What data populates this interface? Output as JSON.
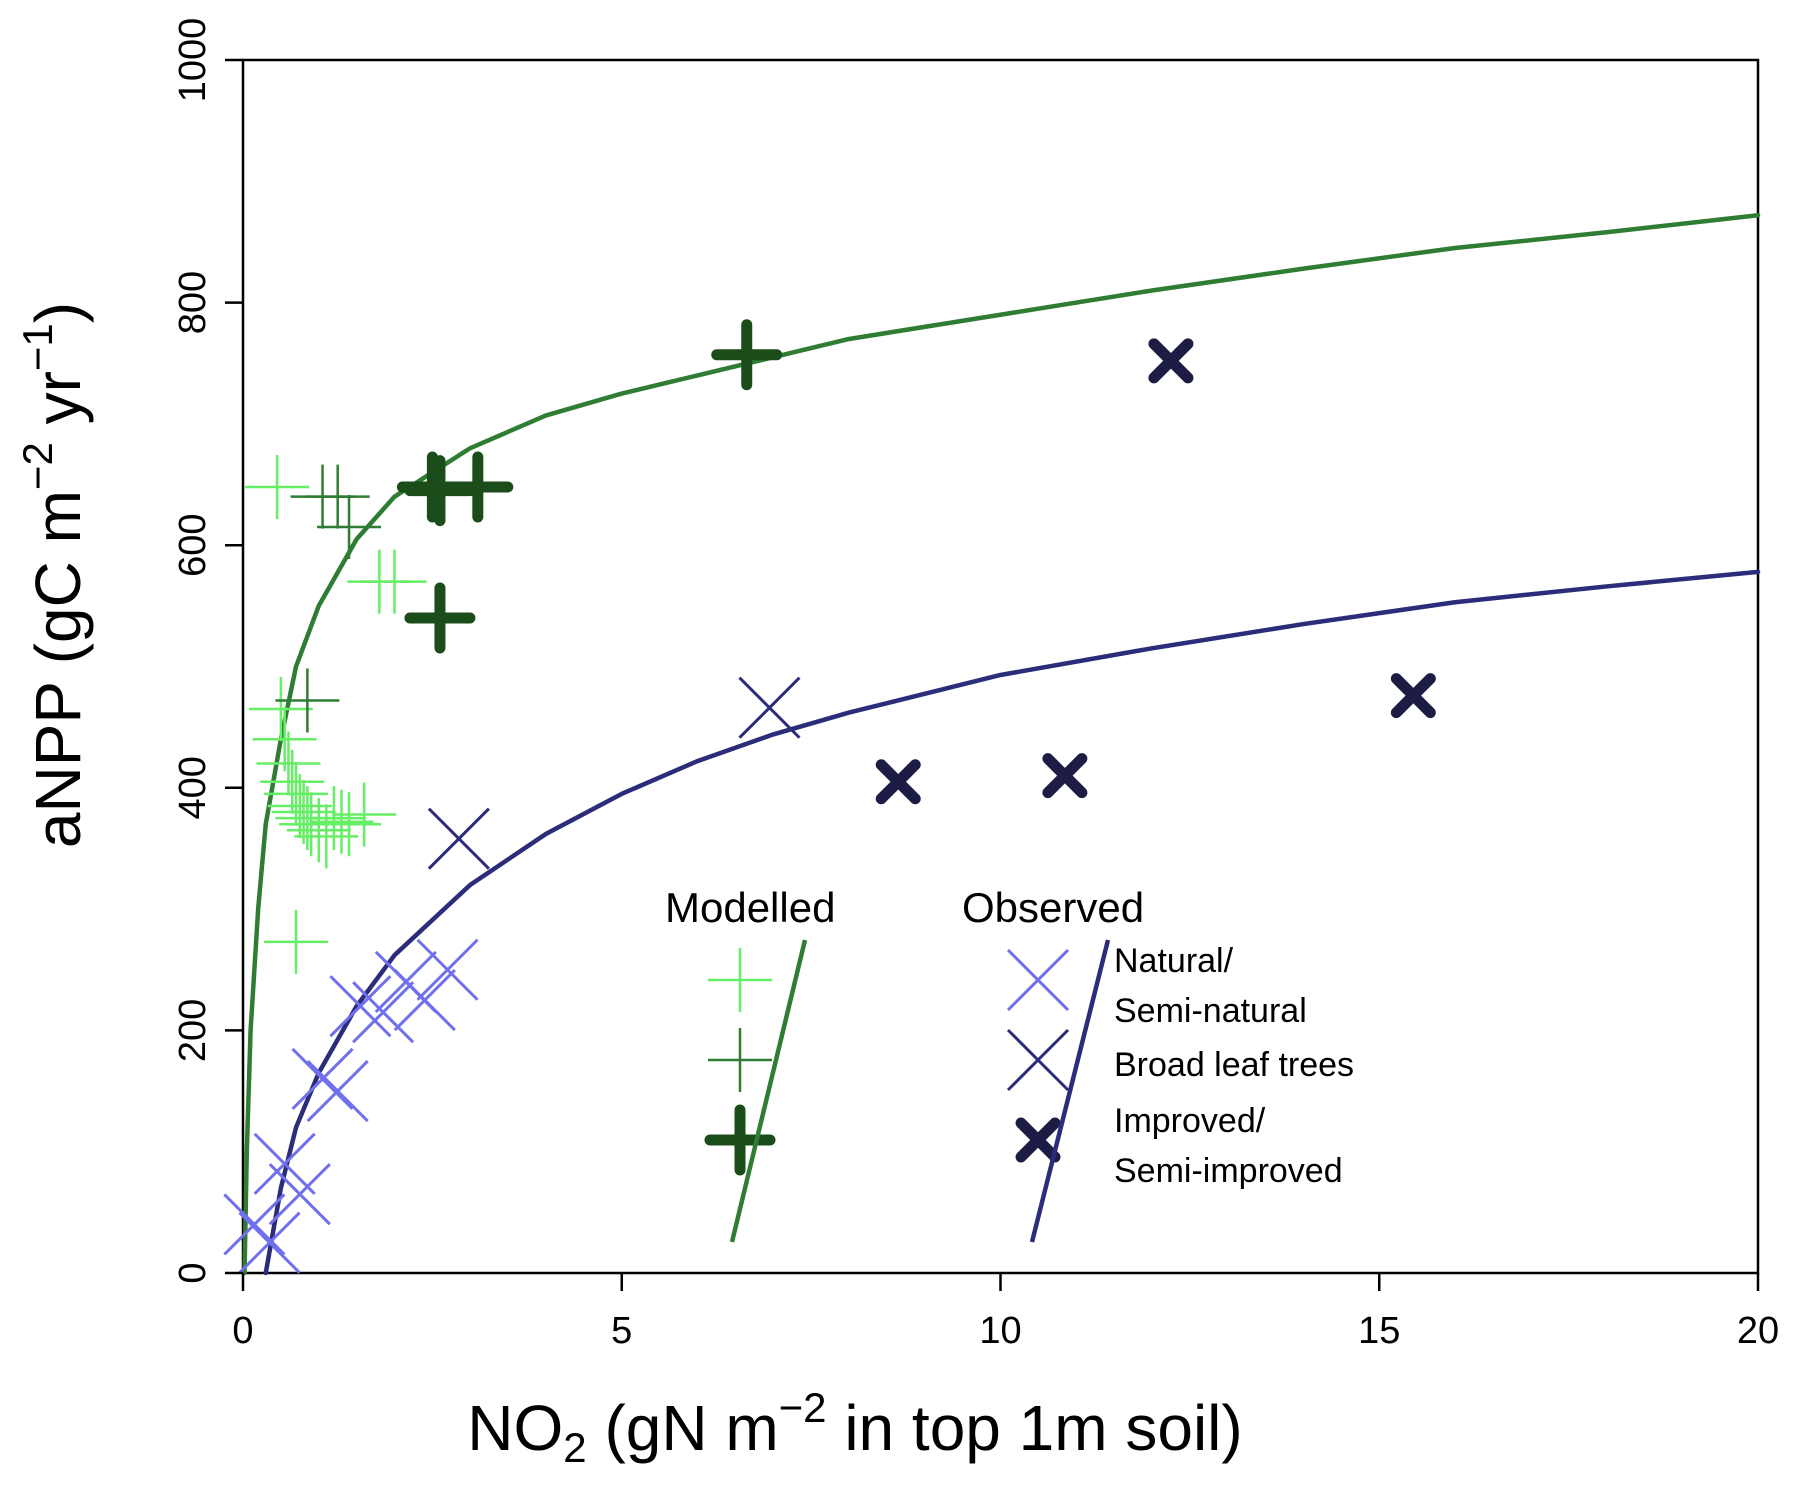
{
  "chart_data": {
    "type": "scatter",
    "title": "",
    "xlabel": {
      "main": "NO",
      "sub": "2",
      "pre_sup": " (gN m",
      "sup": "−2",
      "post": " in top 1m soil)"
    },
    "ylabel": {
      "main": "aNPP (gC m",
      "sup1": "−2",
      "mid": " yr",
      "sup2": "−1",
      "post": ")"
    },
    "xlim": [
      0,
      20
    ],
    "ylim": [
      0,
      1000
    ],
    "xticks": [
      "0",
      "5",
      "10",
      "15",
      "20"
    ],
    "yticks": [
      "0",
      "200",
      "400",
      "600",
      "800",
      "1000"
    ],
    "grid": false,
    "legend": {
      "placement": "bottom-right",
      "modelled_title": "Modelled",
      "observed_title": "Observed",
      "entries": [
        {
          "line1": "Natural/",
          "line2": "Semi-natural",
          "modelled_color": "#66ee66",
          "observed_color": "#7070ee"
        },
        {
          "line1": "Broad leaf trees",
          "line2": "",
          "modelled_color": "#2e7d32",
          "observed_color": "#2b2c7a"
        },
        {
          "line1": "Improved/",
          "line2": "Semi-improved",
          "modelled_color": "#1b4d1b",
          "observed_color": "#1c1c45"
        }
      ],
      "modelled_fit_color": "#2e7d32",
      "observed_fit_color": "#2b2c7a"
    },
    "fits": [
      {
        "color": "#2e7d32",
        "x": [
          0.02,
          0.05,
          0.1,
          0.2,
          0.3,
          0.5,
          0.7,
          1.0,
          1.5,
          2.0,
          3.0,
          4.0,
          5.0,
          6.0,
          7.0,
          8.0,
          10.0,
          12.0,
          14.0,
          16.0,
          18.0,
          20.0
        ],
        "y": [
          0,
          100,
          200,
          300,
          370,
          440,
          500,
          550,
          605,
          640,
          680,
          707,
          725,
          740,
          755,
          770,
          790,
          810,
          828,
          845,
          858,
          872
        ]
      },
      {
        "color": "#2b2c7a",
        "x": [
          0.3,
          0.4,
          0.5,
          0.7,
          1.0,
          1.5,
          2.0,
          3.0,
          4.0,
          5.0,
          6.0,
          7.0,
          8.0,
          10.0,
          12.0,
          14.0,
          16.0,
          18.0,
          20.0
        ],
        "y": [
          0,
          35,
          70,
          120,
          165,
          220,
          262,
          320,
          362,
          395,
          422,
          444,
          462,
          493,
          515,
          535,
          553,
          566,
          578
        ]
      }
    ],
    "series": [
      {
        "group": "modelled",
        "category": "natural",
        "marker": "plus",
        "color": "#66ee66",
        "x": [
          0.45,
          0.5,
          0.55,
          0.6,
          0.65,
          0.7,
          0.75,
          0.8,
          0.85,
          0.9,
          1.0,
          1.1,
          1.2,
          1.3,
          1.4,
          1.6,
          1.8,
          2.0,
          0.7
        ],
        "y": [
          648,
          465,
          440,
          420,
          405,
          395,
          385,
          380,
          375,
          370,
          365,
          360,
          375,
          372,
          370,
          378,
          570,
          570,
          273
        ]
      },
      {
        "group": "modelled",
        "category": "broadleaf",
        "marker": "plus",
        "color": "#2e7d32",
        "x": [
          1.05,
          1.25,
          1.4,
          0.85
        ],
        "y": [
          640,
          640,
          615,
          472
        ]
      },
      {
        "group": "modelled",
        "category": "improved",
        "marker": "plus-bold",
        "color": "#1b4d1b",
        "x": [
          2.5,
          2.6,
          3.1,
          2.6,
          6.65
        ],
        "y": [
          648,
          645,
          648,
          540,
          757
        ]
      },
      {
        "group": "observed",
        "category": "natural",
        "marker": "x",
        "color": "#7070ee",
        "x": [
          0.15,
          0.35,
          0.55,
          0.75,
          1.05,
          1.25,
          1.55,
          1.85,
          2.15,
          2.4,
          2.7
        ],
        "y": [
          40,
          25,
          90,
          65,
          160,
          150,
          220,
          215,
          240,
          225,
          250
        ]
      },
      {
        "group": "observed",
        "category": "broadleaf",
        "marker": "x",
        "color": "#2b2c7a",
        "x": [
          2.85,
          6.95
        ],
        "y": [
          358,
          466
        ]
      },
      {
        "group": "observed",
        "category": "improved",
        "marker": "x-bold",
        "color": "#1c1c45",
        "x": [
          8.65,
          10.85,
          12.25,
          15.45
        ],
        "y": [
          405,
          410,
          752,
          476
        ]
      }
    ]
  }
}
